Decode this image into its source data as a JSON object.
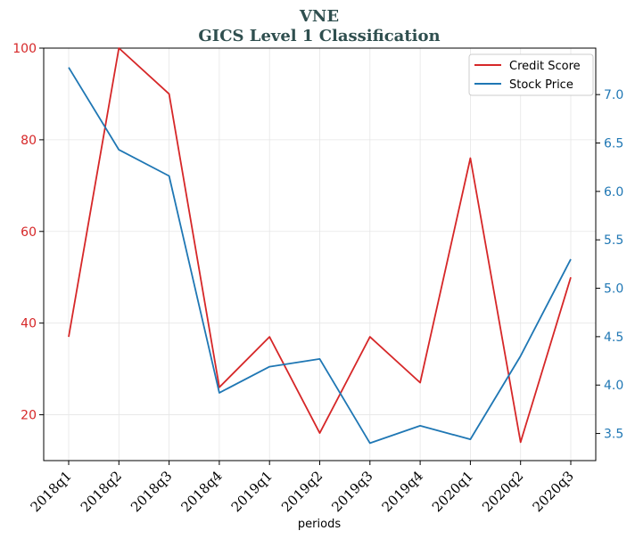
{
  "chart_data": {
    "type": "line",
    "title": "VNE",
    "subtitle": "GICS Level 1 Classification",
    "xlabel": "periods",
    "categories": [
      "2018q1",
      "2018q2",
      "2018q3",
      "2018q4",
      "2019q1",
      "2019q2",
      "2019q3",
      "2019q4",
      "2020q1",
      "2020q2",
      "2020q3"
    ],
    "y_left": {
      "range": [
        10,
        100
      ],
      "ticks": [
        20,
        40,
        60,
        80,
        100
      ],
      "color": "#d62728"
    },
    "y_right": {
      "range": [
        3.22,
        7.48
      ],
      "ticks": [
        3.5,
        4.0,
        4.5,
        5.0,
        5.5,
        6.0,
        6.5,
        7.0
      ],
      "tick_labels": [
        "3.5",
        "4.0",
        "4.5",
        "5.0",
        "5.5",
        "6.0",
        "6.5",
        "7.0"
      ],
      "color": "#1f77b4"
    },
    "grid": true,
    "legend_position": "top-right",
    "series": [
      {
        "name": "Credit Score",
        "axis": "left",
        "color": "#d62728",
        "values": [
          37,
          100,
          90,
          26,
          37,
          16,
          37,
          27,
          76,
          14,
          50
        ]
      },
      {
        "name": "Stock Price",
        "axis": "right",
        "color": "#1f77b4",
        "values": [
          7.28,
          6.43,
          6.16,
          3.92,
          4.19,
          4.27,
          3.4,
          3.58,
          3.44,
          4.3,
          5.3
        ]
      }
    ]
  }
}
